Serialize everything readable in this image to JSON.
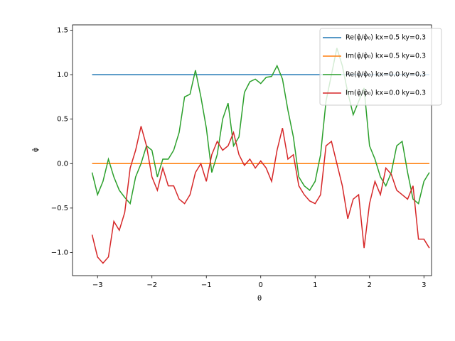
{
  "chart_data": {
    "type": "line",
    "x_label": "θ",
    "y_label": "φ̂",
    "xlim": [
      -3.46,
      3.14
    ],
    "ylim": [
      -1.26,
      1.56
    ],
    "xticks": [
      {
        "value": -3,
        "label": "−3"
      },
      {
        "value": -2,
        "label": "−2"
      },
      {
        "value": -1,
        "label": "−1"
      },
      0,
      1,
      2,
      3
    ],
    "yticks": [
      {
        "value": -1,
        "label": "−1.0"
      },
      {
        "value": -0.5,
        "label": "−0.5"
      },
      {
        "value": 0,
        "label": "0.0"
      },
      {
        "value": 0.5,
        "label": "0.5"
      },
      {
        "value": 1,
        "label": "1.0"
      },
      {
        "value": 1.5,
        "label": "1.5"
      }
    ],
    "legend": "upper right",
    "x": [
      -3.1,
      -3.0,
      -2.9,
      -2.8,
      -2.7,
      -2.6,
      -2.5,
      -2.4,
      -2.3,
      -2.2,
      -2.1,
      -2.0,
      -1.9,
      -1.8,
      -1.7,
      -1.6,
      -1.5,
      -1.4,
      -1.3,
      -1.2,
      -1.1,
      -1.0,
      -0.9,
      -0.8,
      -0.7,
      -0.6,
      -0.5,
      -0.4,
      -0.3,
      -0.2,
      -0.1,
      0.0,
      0.1,
      0.2,
      0.3,
      0.4,
      0.5,
      0.6,
      0.7,
      0.8,
      0.9,
      1.0,
      1.1,
      1.2,
      1.3,
      1.4,
      1.5,
      1.6,
      1.7,
      1.8,
      1.9,
      2.0,
      2.1,
      2.2,
      2.3,
      2.4,
      2.5,
      2.6,
      2.7,
      2.8,
      2.9,
      3.0,
      3.1
    ],
    "series": [
      {
        "name": "Re(φ̂/φ̂₀) kx=0.5 ky=0.3",
        "color": "#1f77b4",
        "values": [
          1,
          1,
          1,
          1,
          1,
          1,
          1,
          1,
          1,
          1,
          1,
          1,
          1,
          1,
          1,
          1,
          1,
          1,
          1,
          1,
          1,
          1,
          1,
          1,
          1,
          1,
          1,
          1,
          1,
          1,
          1,
          1,
          1,
          1,
          1,
          1,
          1,
          1,
          1,
          1,
          1,
          1,
          1,
          1,
          1,
          1,
          1,
          1,
          1,
          1,
          1,
          1,
          1,
          1,
          1,
          1,
          1,
          1,
          1,
          1,
          1,
          1,
          1
        ]
      },
      {
        "name": "Im(φ̂/φ̂₀) kx=0.5 ky=0.3",
        "color": "#ff7f0e",
        "values": [
          0,
          0,
          0,
          0,
          0,
          0,
          0,
          0,
          0,
          0,
          0,
          0,
          0,
          0,
          0,
          0,
          0,
          0,
          0,
          0,
          0,
          0,
          0,
          0,
          0,
          0,
          0,
          0,
          0,
          0,
          0,
          0,
          0,
          0,
          0,
          0,
          0,
          0,
          0,
          0,
          0,
          0,
          0,
          0,
          0,
          0,
          0,
          0,
          0,
          0,
          0,
          0,
          0,
          0,
          0,
          0,
          0,
          0,
          0,
          0,
          0,
          0,
          0
        ]
      },
      {
        "name": "Re(φ̂/φ̂₀) kx=0.0 ky=0.3",
        "color": "#2ca02c",
        "values": [
          -0.1,
          -0.35,
          -0.2,
          0.05,
          -0.15,
          -0.3,
          -0.38,
          -0.45,
          -0.15,
          0.0,
          0.2,
          0.15,
          -0.15,
          0.05,
          0.05,
          0.15,
          0.35,
          0.75,
          0.78,
          1.05,
          0.75,
          0.4,
          -0.1,
          0.1,
          0.5,
          0.68,
          0.2,
          0.3,
          0.8,
          0.92,
          0.95,
          0.9,
          0.97,
          0.98,
          1.1,
          0.95,
          0.6,
          0.3,
          -0.15,
          -0.25,
          -0.3,
          -0.2,
          0.1,
          0.7,
          1.0,
          1.3,
          1.1,
          0.8,
          0.55,
          0.7,
          0.85,
          0.2,
          0.05,
          -0.15,
          -0.25,
          -0.1,
          0.2,
          0.25,
          -0.1,
          -0.4,
          -0.45,
          -0.2,
          -0.1
        ]
      },
      {
        "name": "Im(φ̂/φ̂₀) kx=0.0 ky=0.3",
        "color": "#d62728",
        "values": [
          -0.8,
          -1.05,
          -1.12,
          -1.05,
          -0.65,
          -0.75,
          -0.55,
          -0.05,
          0.15,
          0.42,
          0.2,
          -0.15,
          -0.3,
          -0.05,
          -0.25,
          -0.25,
          -0.4,
          -0.45,
          -0.35,
          -0.1,
          0.0,
          -0.2,
          0.1,
          0.25,
          0.15,
          0.2,
          0.35,
          0.1,
          -0.02,
          0.05,
          -0.05,
          0.03,
          -0.05,
          -0.2,
          0.15,
          0.4,
          0.05,
          0.1,
          -0.25,
          -0.35,
          -0.42,
          -0.45,
          -0.35,
          0.2,
          0.25,
          0.0,
          -0.25,
          -0.62,
          -0.4,
          -0.35,
          -0.95,
          -0.45,
          -0.2,
          -0.35,
          -0.05,
          -0.12,
          -0.3,
          -0.35,
          -0.4,
          -0.25,
          -0.85,
          -0.85,
          -0.95
        ]
      }
    ]
  }
}
